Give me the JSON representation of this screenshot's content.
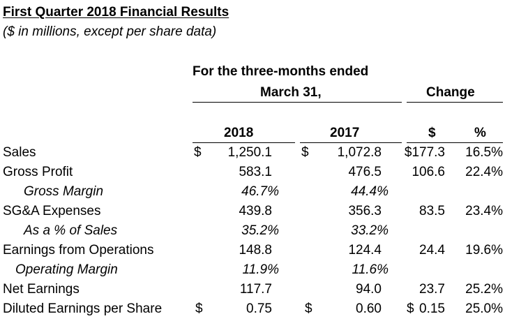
{
  "title": "First Quarter 2018 Financial Results",
  "subtitle": "($ in millions, except per share data)",
  "header": {
    "period_line1": "For the three-months ended",
    "period_line2": "March 31,",
    "change": "Change",
    "col_2018": "2018",
    "col_2017": "2017",
    "col_dollar": "$",
    "col_pct": "%"
  },
  "rows": [
    {
      "label": "Sales",
      "c2018": "$",
      "v2018": "1,250.1",
      "c2017": "$",
      "v2017": "1,072.8",
      "cchg": "",
      "vchg": "$177.3",
      "pct": "16.5%"
    },
    {
      "label": "Gross Profit",
      "c2018": "",
      "v2018": "583.1",
      "c2017": "",
      "v2017": "476.5",
      "cchg": "",
      "vchg": "106.6",
      "pct": "22.4%"
    },
    {
      "label": "Gross Margin",
      "c2018": "",
      "v2018": "46.7%",
      "c2017": "",
      "v2017": "44.4%",
      "cchg": "",
      "vchg": "",
      "pct": ""
    },
    {
      "label": "SG&A Expenses",
      "c2018": "",
      "v2018": "439.8",
      "c2017": "",
      "v2017": "356.3",
      "cchg": "",
      "vchg": "83.5",
      "pct": "23.4%"
    },
    {
      "label": "As a % of Sales",
      "c2018": "",
      "v2018": "35.2%",
      "c2017": "",
      "v2017": "33.2%",
      "cchg": "",
      "vchg": "",
      "pct": ""
    },
    {
      "label": "Earnings from Operations",
      "c2018": "",
      "v2018": "148.8",
      "c2017": "",
      "v2017": "124.4",
      "cchg": "",
      "vchg": "24.4",
      "pct": "19.6%"
    },
    {
      "label": "Operating Margin",
      "c2018": "",
      "v2018": "11.9%",
      "c2017": "",
      "v2017": "11.6%",
      "cchg": "",
      "vchg": "",
      "pct": ""
    },
    {
      "label": "Net Earnings",
      "c2018": "",
      "v2018": "117.7",
      "c2017": "",
      "v2017": "94.0",
      "cchg": "",
      "vchg": "23.7",
      "pct": "25.2%"
    },
    {
      "label": "Diluted Earnings per Share",
      "c2018": "$",
      "v2018": "0.75",
      "c2017": "$",
      "v2017": "0.60",
      "cchg": "$",
      "vchg": "0.15",
      "pct": "25.0%"
    }
  ]
}
